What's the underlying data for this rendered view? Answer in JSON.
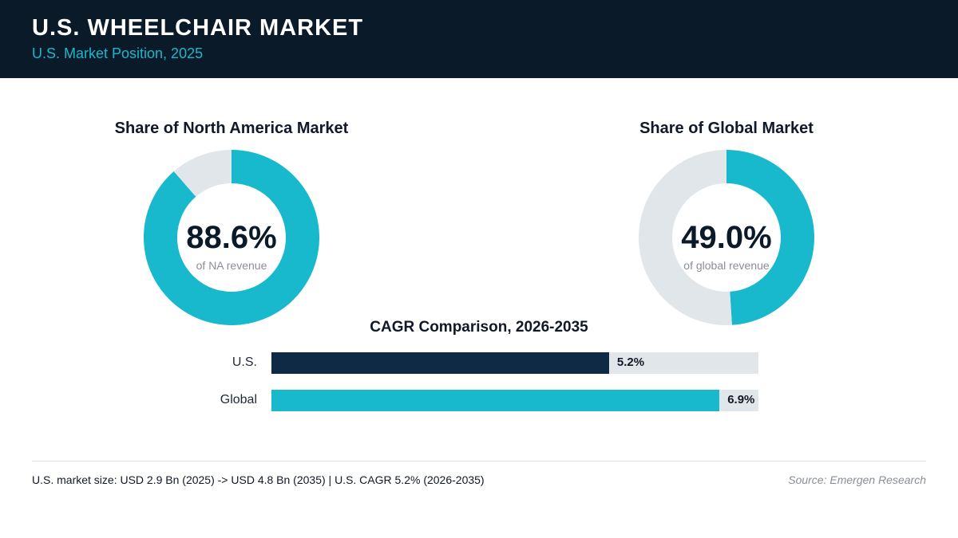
{
  "header": {
    "title": "U.S. WHEELCHAIR MARKET",
    "subtitle": "U.S. Market Position, 2025"
  },
  "colors": {
    "accent": "#18b9cc",
    "dark": "#0e2a45",
    "track": "#e1e6eb"
  },
  "chart_data": [
    {
      "type": "pie",
      "title": "Share of North America Market",
      "value_label": "88.6%",
      "caption": "of NA revenue",
      "slices": [
        {
          "value": 88.6,
          "color": "#18b9cc"
        },
        {
          "value": 11.4,
          "color": "#e1e6eb"
        }
      ]
    },
    {
      "type": "pie",
      "title": "Share of Global Market",
      "value_label": "49.0%",
      "caption": "of global revenue",
      "slices": [
        {
          "value": 49.0,
          "color": "#18b9cc"
        },
        {
          "value": 51.0,
          "color": "#e1e6eb"
        }
      ]
    },
    {
      "type": "bar",
      "title": "CAGR Comparison, 2026-2035",
      "categories": [
        "U.S.",
        "Global"
      ],
      "values": [
        5.2,
        6.9
      ],
      "value_labels": [
        "5.2%",
        "6.9%"
      ],
      "colors": [
        "#0e2a45",
        "#18b9cc"
      ],
      "xlim": [
        0,
        7.5
      ]
    }
  ],
  "footer": {
    "note": "U.S. market size: USD 2.9 Bn (2025) -> USD 4.8 Bn (2035)  |  U.S. CAGR 5.2% (2026-2035)",
    "source": "Source: Emergen Research"
  }
}
